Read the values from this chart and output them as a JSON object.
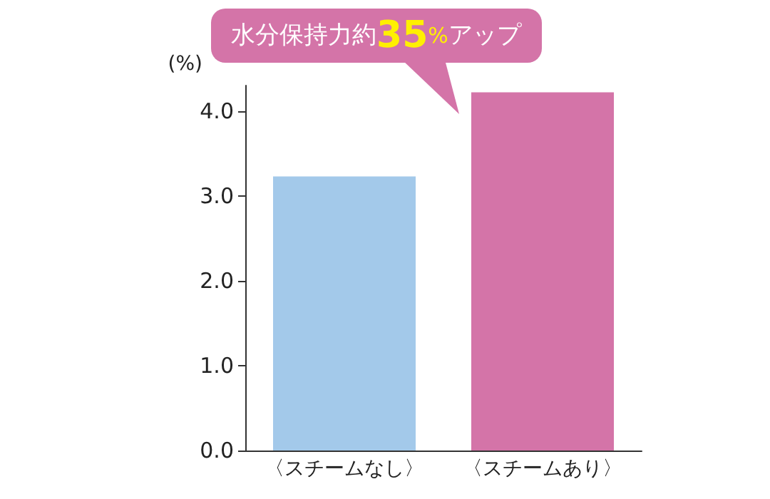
{
  "chart_data": {
    "type": "bar",
    "title": "水分保持力約35%アップ",
    "ylabel": "(%)",
    "categories": [
      "〈スチームなし〉",
      "〈スチームあり〉"
    ],
    "values": [
      3.23,
      4.22
    ],
    "colors": [
      "#a3c9ea",
      "#d474a8"
    ],
    "ylim": [
      0,
      4.3
    ],
    "yticks": [
      {
        "value": 0,
        "label": "0.0"
      },
      {
        "value": 1,
        "label": "1.0"
      },
      {
        "value": 2,
        "label": "2.0"
      },
      {
        "value": 3,
        "label": "3.0"
      },
      {
        "value": 4,
        "label": "4.0"
      }
    ],
    "grid": false
  }
}
